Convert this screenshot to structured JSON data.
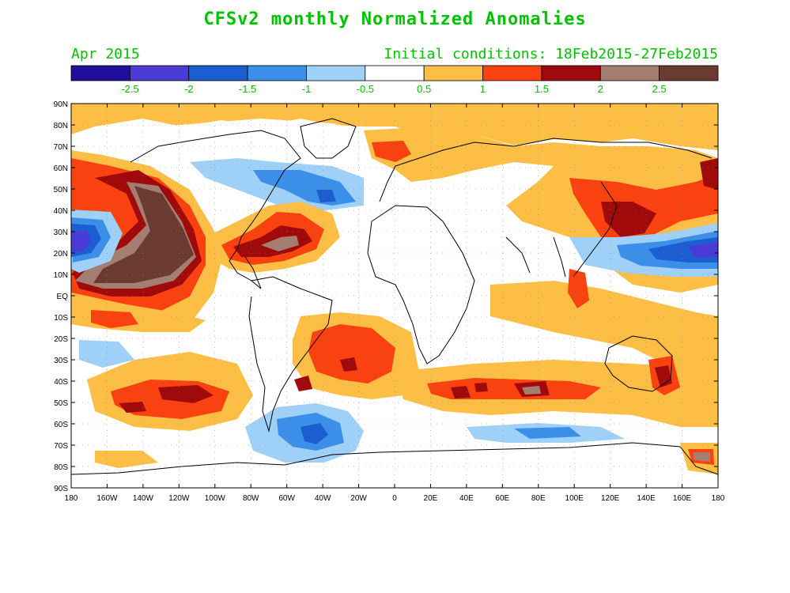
{
  "header": {
    "title": "CFSv2 monthly Normalized Anomalies",
    "month": "Apr 2015",
    "initial_conditions": "Initial conditions: 18Feb2015-27Feb2015"
  },
  "colorbar": {
    "colors": [
      "#1f0e9c",
      "#4a3ad6",
      "#1c5ed1",
      "#3c8fe8",
      "#9fd0f7",
      "#ffffff",
      "#fdbe45",
      "#f9420f",
      "#a10a0a",
      "#a47e70",
      "#6b3a30"
    ],
    "labels": [
      "-2.5",
      "-2",
      "-1.5",
      "-1",
      "-0.5",
      "0.5",
      "1",
      "1.5",
      "2",
      "2.5"
    ]
  },
  "axes": {
    "lat_labels": [
      "90N",
      "80N",
      "70N",
      "60N",
      "50N",
      "40N",
      "30N",
      "20N",
      "10N",
      "EQ",
      "10S",
      "20S",
      "30S",
      "40S",
      "50S",
      "60S",
      "70S",
      "80S",
      "90S"
    ],
    "lon_labels": [
      "180",
      "160W",
      "140W",
      "120W",
      "100W",
      "80W",
      "60W",
      "40W",
      "20W",
      "0",
      "20E",
      "40E",
      "60E",
      "80E",
      "100E",
      "120E",
      "140E",
      "160E",
      "180"
    ]
  },
  "anomaly_regions": [
    {
      "name": "ne-pacific-warm-core",
      "level": "2.5+",
      "lat": [
        5,
        55
      ],
      "lon": [
        -175,
        -110
      ]
    },
    {
      "name": "nw-pacific-cold-band",
      "level": "-2.5",
      "lat": [
        15,
        35
      ],
      "lon": [
        -180,
        -155
      ]
    },
    {
      "name": "w-pacific-cold-band",
      "level": "-2",
      "lat": [
        15,
        30
      ],
      "lon": [
        120,
        180
      ]
    },
    {
      "name": "north-atlantic-cold",
      "level": "-1.5",
      "lat": [
        40,
        65
      ],
      "lon": [
        -60,
        -20
      ]
    },
    {
      "name": "southern-ocean-cold",
      "level": "-1.5",
      "lat": [
        -75,
        -55
      ],
      "lon": [
        -80,
        -10
      ]
    },
    {
      "name": "caribbean-warm",
      "level": "2.5",
      "lat": [
        15,
        40
      ],
      "lon": [
        -90,
        -50
      ]
    },
    {
      "name": "south-atlantic-warm",
      "level": "1.5",
      "lat": [
        -50,
        -20
      ],
      "lon": [
        -50,
        0
      ]
    },
    {
      "name": "south-indian-warm",
      "level": "2",
      "lat": [
        -55,
        -35
      ],
      "lon": [
        0,
        90
      ]
    },
    {
      "name": "se-pacific-warm",
      "level": "2",
      "lat": [
        -60,
        -30
      ],
      "lon": [
        -160,
        -100
      ]
    },
    {
      "name": "east-asia-warm",
      "level": "2",
      "lat": [
        20,
        55
      ],
      "lon": [
        100,
        180
      ]
    }
  ]
}
